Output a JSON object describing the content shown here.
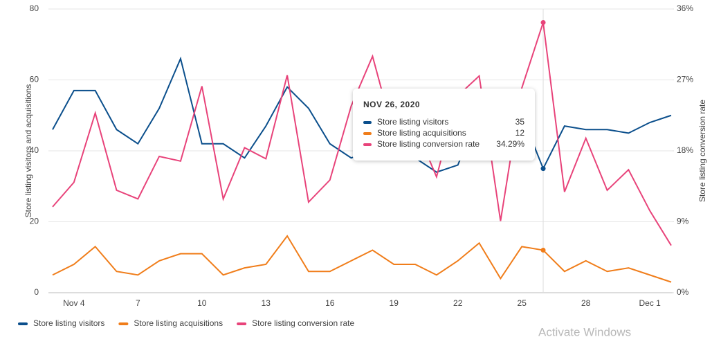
{
  "chart_data": {
    "type": "line",
    "categories": [
      null,
      "Nov 4",
      null,
      null,
      "7",
      null,
      null,
      "10",
      null,
      null,
      "13",
      null,
      null,
      "16",
      null,
      null,
      "19",
      null,
      null,
      "22",
      null,
      null,
      "25",
      null,
      null,
      "28",
      null,
      null,
      "Dec 1",
      null
    ],
    "series": [
      {
        "name": "Store listing visitors",
        "color": "#0b4f8c",
        "axis": "y",
        "values": [
          46,
          57,
          57,
          46,
          42,
          52,
          66,
          42,
          42,
          38,
          47,
          58,
          52,
          42,
          38,
          40,
          40,
          38,
          34,
          36,
          51,
          44,
          50,
          35,
          47,
          46,
          46,
          45,
          48,
          50
        ]
      },
      {
        "name": "Store listing acquisitions",
        "color": "#f07d1a",
        "axis": "y",
        "values": [
          5,
          8,
          13,
          6,
          5,
          9,
          11,
          11,
          5,
          7,
          8,
          16,
          6,
          6,
          9,
          12,
          8,
          8,
          5,
          9,
          14,
          4,
          13,
          12,
          6,
          9,
          6,
          7,
          5,
          3
        ]
      },
      {
        "name": "Store listing conversion rate",
        "color": "#e8437a",
        "axis": "y2",
        "values": [
          10.9,
          14.0,
          22.8,
          13.0,
          11.9,
          17.3,
          16.7,
          26.2,
          11.9,
          18.4,
          17.0,
          27.6,
          11.5,
          14.3,
          23.7,
          30.0,
          20.0,
          21.1,
          14.7,
          25.0,
          27.5,
          9.1,
          26.0,
          34.29,
          12.8,
          19.6,
          13.0,
          15.6,
          10.4,
          6.0
        ]
      }
    ],
    "ylabel": "Store listing visitors and acquisitions",
    "y2label": "Store listing conversion rate",
    "ylim": [
      0,
      80
    ],
    "yticks": [
      0,
      20,
      40,
      60,
      80
    ],
    "y2lim": [
      0,
      36
    ],
    "y2ticks": [
      {
        "value": 0,
        "label": "0%"
      },
      {
        "value": 9,
        "label": "9%"
      },
      {
        "value": 18,
        "label": "18%"
      },
      {
        "value": 27,
        "label": "27%"
      },
      {
        "value": 36,
        "label": "36%"
      }
    ],
    "grid": true,
    "legend": "bottom",
    "tooltip": {
      "index": 23,
      "title": "NOV 26, 2020",
      "value_labels": [
        "35",
        "12",
        "34.29%"
      ]
    }
  },
  "watermark": "Activate Windows"
}
